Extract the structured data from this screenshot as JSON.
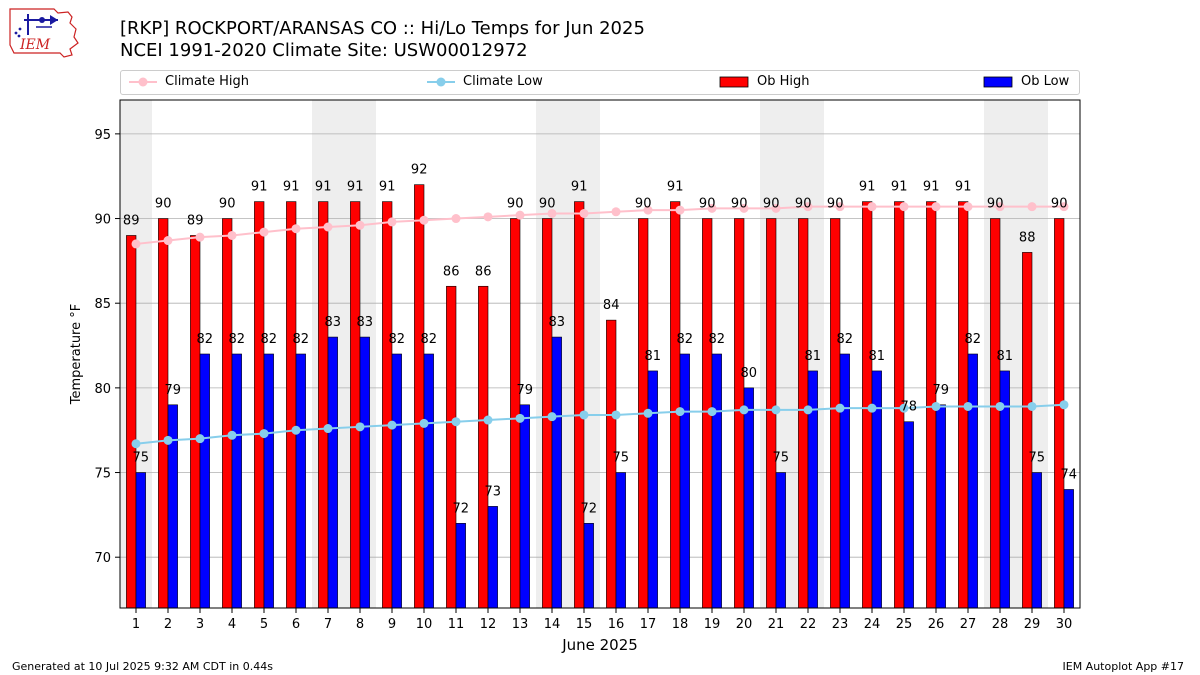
{
  "header": {
    "title_line1": "[RKP] ROCKPORT/ARANSAS CO :: Hi/Lo Temps for Jun 2025",
    "title_line2": "NCEI 1991-2020 Climate Site: USW00012972",
    "logo_text": "IEM"
  },
  "footer": {
    "generated": "Generated at 10 Jul 2025 9:32 AM CDT in 0.44s",
    "app": "IEM Autoplot App #17"
  },
  "colors": {
    "ob_high": "#ff0000",
    "ob_low": "#0000ff",
    "climate_high": "#ffc0cb",
    "climate_low": "#87ceeb",
    "weekend_shade": "#eeeeee",
    "grid": "#b0b0b0"
  },
  "chart_data": {
    "type": "bar",
    "title": "[RKP] ROCKPORT/ARANSAS CO :: Hi/Lo Temps for Jun 2025",
    "xlabel": "June 2025",
    "ylabel": "Temperature °F",
    "ylim": [
      67,
      97
    ],
    "yticks": [
      70,
      75,
      80,
      85,
      90,
      95
    ],
    "grid": true,
    "legend_position": "top",
    "legend": [
      "Climate High",
      "Climate Low",
      "Ob High",
      "Ob Low"
    ],
    "categories": [
      "1",
      "2",
      "3",
      "4",
      "5",
      "6",
      "7",
      "8",
      "9",
      "10",
      "11",
      "12",
      "13",
      "14",
      "15",
      "16",
      "17",
      "18",
      "19",
      "20",
      "21",
      "22",
      "23",
      "24",
      "25",
      "26",
      "27",
      "28",
      "29",
      "30"
    ],
    "shaded_days": [
      1,
      7,
      8,
      14,
      15,
      21,
      22,
      28,
      29
    ],
    "series": [
      {
        "name": "Ob High",
        "kind": "bar",
        "values": [
          89,
          90,
          89,
          90,
          91,
          91,
          91,
          91,
          91,
          92,
          86,
          86,
          90,
          90,
          91,
          84,
          90,
          91,
          90,
          90,
          90,
          90,
          90,
          91,
          91,
          91,
          91,
          90,
          88,
          90
        ]
      },
      {
        "name": "Ob Low",
        "kind": "bar",
        "values": [
          75,
          79,
          82,
          82,
          82,
          82,
          83,
          83,
          82,
          82,
          72,
          73,
          79,
          83,
          72,
          75,
          81,
          82,
          82,
          80,
          75,
          81,
          82,
          81,
          78,
          79,
          82,
          81,
          75,
          74
        ]
      },
      {
        "name": "Climate High",
        "kind": "line",
        "values": [
          88.5,
          88.7,
          88.9,
          89.0,
          89.2,
          89.4,
          89.5,
          89.6,
          89.8,
          89.9,
          90.0,
          90.1,
          90.2,
          90.3,
          90.3,
          90.4,
          90.5,
          90.5,
          90.6,
          90.6,
          90.6,
          90.7,
          90.7,
          90.7,
          90.7,
          90.7,
          90.7,
          90.7,
          90.7,
          90.7
        ]
      },
      {
        "name": "Climate Low",
        "kind": "line",
        "values": [
          76.7,
          76.9,
          77.0,
          77.2,
          77.3,
          77.5,
          77.6,
          77.7,
          77.8,
          77.9,
          78.0,
          78.1,
          78.2,
          78.3,
          78.4,
          78.4,
          78.5,
          78.6,
          78.6,
          78.7,
          78.7,
          78.7,
          78.8,
          78.8,
          78.8,
          78.9,
          78.9,
          78.9,
          78.9,
          79.0
        ]
      }
    ]
  }
}
